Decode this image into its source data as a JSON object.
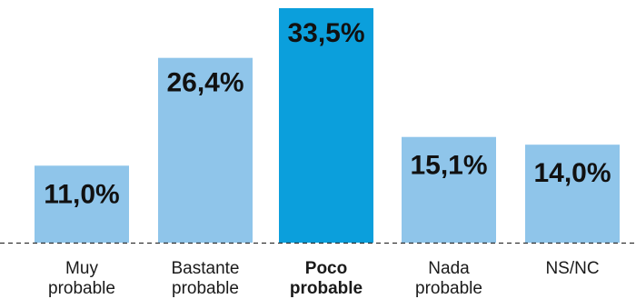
{
  "chart_data": {
    "type": "bar",
    "title": "",
    "xlabel": "",
    "ylabel": "",
    "categories": [
      [
        "Muy",
        "probable"
      ],
      [
        "Bastante",
        "probable"
      ],
      [
        "Poco",
        "probable"
      ],
      [
        "Nada",
        "probable"
      ],
      [
        "NS/NC"
      ]
    ],
    "values": [
      11.0,
      26.4,
      33.5,
      15.1,
      14.0
    ],
    "value_labels": [
      "11,0%",
      "26,4%",
      "33,5%",
      "15,1%",
      "14,0%"
    ],
    "highlighted_index": 2,
    "ylim": [
      0,
      33.5
    ],
    "grid": false,
    "baseline_style": "dashed",
    "colors": {
      "bar": "#8fc5ea",
      "highlight": "#0b9fdc",
      "label_text": "#111111",
      "baseline": "#333333"
    }
  }
}
